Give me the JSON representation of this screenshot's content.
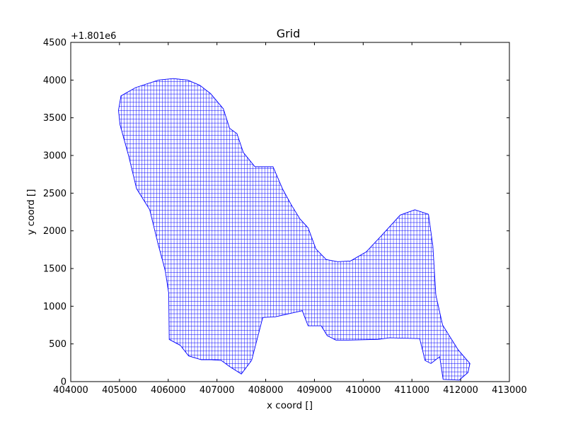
{
  "chart_data": {
    "type": "mesh",
    "title": "Grid",
    "xlabel": "x coord []",
    "ylabel": "y coord []",
    "y_offset_label": "+1.801e6",
    "y_offset": 1801000,
    "xlim": [
      404000,
      413000
    ],
    "ylim": [
      0,
      4500
    ],
    "x_ticks": [
      404000,
      405000,
      406000,
      407000,
      408000,
      409000,
      410000,
      411000,
      412000,
      413000
    ],
    "x_tick_labels": [
      "404000",
      "405000",
      "406000",
      "407000",
      "408000",
      "409000",
      "410000",
      "411000",
      "412000",
      "413000"
    ],
    "y_ticks": [
      0,
      500,
      1000,
      1500,
      2000,
      2500,
      3000,
      3500,
      4000,
      4500
    ],
    "y_tick_labels": [
      "0",
      "500",
      "1000",
      "1500",
      "2000",
      "2500",
      "3000",
      "3500",
      "4000",
      "4500"
    ],
    "grid": false,
    "mesh_color": "#0000ff",
    "mesh_spacing": {
      "x": 60,
      "y": 55
    },
    "boundary": [
      [
        405030,
        3790
      ],
      [
        405330,
        3900
      ],
      [
        405800,
        4000
      ],
      [
        406100,
        4020
      ],
      [
        406400,
        4000
      ],
      [
        406650,
        3930
      ],
      [
        406870,
        3820
      ],
      [
        407130,
        3620
      ],
      [
        407260,
        3360
      ],
      [
        407410,
        3290
      ],
      [
        407540,
        3040
      ],
      [
        407780,
        2850
      ],
      [
        408150,
        2850
      ],
      [
        408350,
        2550
      ],
      [
        408520,
        2350
      ],
      [
        408700,
        2160
      ],
      [
        408870,
        2040
      ],
      [
        409030,
        1760
      ],
      [
        409240,
        1620
      ],
      [
        409480,
        1590
      ],
      [
        409740,
        1600
      ],
      [
        410060,
        1720
      ],
      [
        410380,
        1940
      ],
      [
        410760,
        2210
      ],
      [
        411060,
        2280
      ],
      [
        411340,
        2220
      ],
      [
        411430,
        1800
      ],
      [
        411490,
        1150
      ],
      [
        411630,
        750
      ],
      [
        411950,
        420
      ],
      [
        412190,
        240
      ],
      [
        412150,
        120
      ],
      [
        411970,
        20
      ],
      [
        411640,
        30
      ],
      [
        411570,
        330
      ],
      [
        411390,
        240
      ],
      [
        411270,
        280
      ],
      [
        411160,
        570
      ],
      [
        410540,
        580
      ],
      [
        410300,
        560
      ],
      [
        409690,
        550
      ],
      [
        409440,
        550
      ],
      [
        409260,
        610
      ],
      [
        409140,
        740
      ],
      [
        408870,
        740
      ],
      [
        408750,
        940
      ],
      [
        408200,
        860
      ],
      [
        407940,
        850
      ],
      [
        407710,
        280
      ],
      [
        407500,
        100
      ],
      [
        407260,
        200
      ],
      [
        407090,
        280
      ],
      [
        406880,
        290
      ],
      [
        406680,
        290
      ],
      [
        406420,
        340
      ],
      [
        406250,
        480
      ],
      [
        406020,
        560
      ],
      [
        406010,
        1170
      ],
      [
        405940,
        1470
      ],
      [
        405790,
        1830
      ],
      [
        405620,
        2280
      ],
      [
        405350,
        2560
      ],
      [
        405190,
        2990
      ],
      [
        405010,
        3410
      ],
      [
        404980,
        3600
      ]
    ]
  }
}
